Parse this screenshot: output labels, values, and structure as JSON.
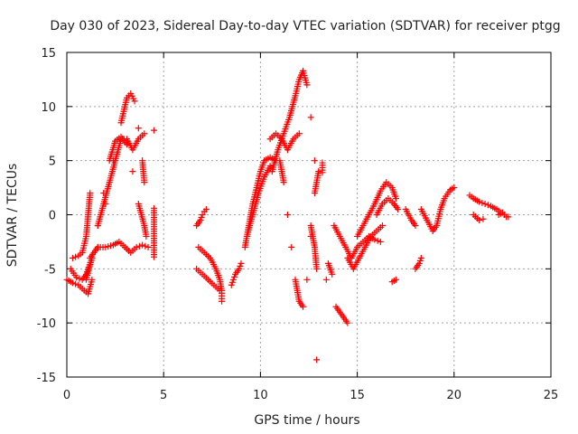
{
  "chart_data": {
    "type": "scatter",
    "title": "Day 030 of 2023, Sidereal Day-to-day VTEC variation (SDTVAR) for receiver ptgg",
    "xlabel": "GPS time / hours",
    "ylabel": "SDTVAR / TECUs",
    "xlim": [
      0,
      25
    ],
    "ylim": [
      -15,
      15
    ],
    "xticks": [
      0,
      5,
      10,
      15,
      20,
      25
    ],
    "yticks": [
      -15,
      -10,
      -5,
      0,
      5,
      10,
      15
    ],
    "grid": true,
    "marker": "+",
    "color": "#ff0000",
    "series": [
      {
        "name": "seg1",
        "points": [
          [
            0,
            -6
          ],
          [
            0.3,
            -6.3
          ],
          [
            0.6,
            -6.5
          ],
          [
            0.9,
            -7
          ],
          [
            1.1,
            -7.3
          ],
          [
            1.3,
            -6
          ],
          [
            1.6,
            -3
          ],
          [
            2.0,
            1
          ],
          [
            2.4,
            5
          ],
          [
            2.8,
            8.5
          ],
          [
            3.1,
            10.8
          ],
          [
            3.3,
            11.2
          ],
          [
            3.5,
            10.5
          ],
          [
            3.7,
            8
          ],
          [
            3.9,
            5
          ],
          [
            4.0,
            3
          ]
        ]
      },
      {
        "name": "seg2",
        "points": [
          [
            0.2,
            -5
          ],
          [
            0.5,
            -5.8
          ],
          [
            0.8,
            -6
          ],
          [
            1.0,
            -5.5
          ],
          [
            1.3,
            -4
          ],
          [
            1.6,
            -1
          ],
          [
            1.9,
            2
          ],
          [
            2.2,
            5
          ],
          [
            2.5,
            6.8
          ],
          [
            2.8,
            7.2
          ],
          [
            3.1,
            6.5
          ],
          [
            3.4,
            4
          ],
          [
            3.7,
            1
          ],
          [
            4.0,
            -1
          ],
          [
            4.1,
            -2
          ]
        ]
      },
      {
        "name": "seg3",
        "points": [
          [
            0.3,
            -4
          ],
          [
            0.6,
            -3.8
          ],
          [
            0.8,
            -3.5
          ],
          [
            1.0,
            -2
          ],
          [
            1.1,
            0
          ],
          [
            1.2,
            2
          ]
        ]
      },
      {
        "name": "seg4",
        "points": [
          [
            1.2,
            -4
          ],
          [
            1.6,
            -3
          ],
          [
            2.0,
            -3
          ],
          [
            2.4,
            -2.8
          ],
          [
            2.7,
            -2.5
          ],
          [
            3.0,
            -3
          ],
          [
            3.3,
            -3.5
          ],
          [
            3.6,
            -3
          ],
          [
            3.9,
            -2.8
          ],
          [
            4.2,
            -3
          ]
        ]
      },
      {
        "name": "seg5",
        "points": [
          [
            1.0,
            -6
          ],
          [
            1.3,
            -4
          ],
          [
            1.6,
            -1
          ],
          [
            1.9,
            1
          ],
          [
            2.2,
            3
          ],
          [
            2.5,
            5
          ],
          [
            2.8,
            7
          ],
          [
            3.1,
            7
          ],
          [
            3.4,
            6
          ],
          [
            3.7,
            7
          ],
          [
            4.0,
            7.5
          ]
        ]
      },
      {
        "name": "seg6",
        "points": [
          [
            4.5,
            7.8
          ],
          [
            4.5,
            0.6
          ],
          [
            4.5,
            -1.1
          ],
          [
            4.5,
            -2.4
          ],
          [
            4.5,
            -3.9
          ]
        ]
      },
      {
        "name": "seg7",
        "points": [
          [
            6.7,
            -1
          ],
          [
            6.9,
            -0.5
          ],
          [
            7.0,
            0
          ],
          [
            7.1,
            0.3
          ],
          [
            7.2,
            0.5
          ]
        ]
      },
      {
        "name": "seg8",
        "points": [
          [
            6.8,
            -3
          ],
          [
            7.1,
            -3.5
          ],
          [
            7.4,
            -4
          ],
          [
            7.7,
            -5
          ],
          [
            7.9,
            -6
          ],
          [
            8.0,
            -7
          ],
          [
            8.0,
            -8
          ]
        ]
      },
      {
        "name": "seg9",
        "points": [
          [
            6.7,
            -5
          ],
          [
            7.0,
            -5.5
          ],
          [
            7.3,
            -6
          ],
          [
            7.6,
            -6.5
          ],
          [
            7.9,
            -7
          ]
        ]
      },
      {
        "name": "seg10",
        "points": [
          [
            8.5,
            -6.5
          ],
          [
            8.6,
            -6
          ],
          [
            8.7,
            -5.5
          ],
          [
            8.9,
            -5
          ],
          [
            9.0,
            -4.5
          ]
        ]
      },
      {
        "name": "seg11",
        "points": [
          [
            9.2,
            -3
          ],
          [
            9.4,
            -1
          ],
          [
            9.6,
            1
          ],
          [
            9.8,
            2.5
          ],
          [
            10.0,
            4
          ],
          [
            10.2,
            5
          ],
          [
            10.5,
            5.3
          ],
          [
            10.8,
            5
          ]
        ]
      },
      {
        "name": "seg12",
        "points": [
          [
            9.3,
            -2
          ],
          [
            9.6,
            0
          ],
          [
            9.9,
            2
          ],
          [
            10.2,
            3.5
          ],
          [
            10.5,
            4.5
          ]
        ]
      },
      {
        "name": "seg13",
        "points": [
          [
            10.6,
            4
          ],
          [
            10.9,
            6
          ],
          [
            11.2,
            7.5
          ],
          [
            11.5,
            9
          ],
          [
            11.8,
            11
          ],
          [
            12.0,
            12.5
          ],
          [
            12.2,
            13.3
          ],
          [
            12.4,
            12
          ],
          [
            12.6,
            9
          ],
          [
            12.8,
            5
          ]
        ]
      },
      {
        "name": "seg14",
        "points": [
          [
            10.5,
            7
          ],
          [
            10.8,
            7.5
          ],
          [
            11.1,
            7
          ],
          [
            11.4,
            6
          ],
          [
            11.7,
            7
          ],
          [
            12.0,
            7.5
          ]
        ]
      },
      {
        "name": "seg15",
        "points": [
          [
            11.0,
            5
          ],
          [
            11.2,
            3
          ],
          [
            11.4,
            0
          ],
          [
            11.6,
            -3
          ],
          [
            11.8,
            -6
          ],
          [
            12.0,
            -8
          ],
          [
            12.2,
            -8.5
          ],
          [
            12.4,
            -6
          ],
          [
            12.6,
            -2
          ],
          [
            12.8,
            2
          ],
          [
            13.0,
            4
          ]
        ]
      },
      {
        "name": "seg16",
        "points": [
          [
            12.6,
            -1
          ],
          [
            12.8,
            -3
          ],
          [
            12.9,
            -5
          ]
        ]
      },
      {
        "name": "seg17",
        "points": [
          [
            12.9,
            -13.4
          ],
          [
            13.2,
            4.8
          ],
          [
            13.2,
            3.9
          ],
          [
            13.4,
            -6
          ]
        ]
      },
      {
        "name": "seg18",
        "points": [
          [
            13.5,
            -4.5
          ],
          [
            13.7,
            -5.5
          ],
          [
            13.9,
            -8.5
          ],
          [
            14.1,
            -9
          ],
          [
            14.3,
            -9.5
          ],
          [
            14.5,
            -10
          ]
        ]
      },
      {
        "name": "seg19",
        "points": [
          [
            13.8,
            -1
          ],
          [
            14.1,
            -2
          ],
          [
            14.4,
            -3
          ],
          [
            14.7,
            -4
          ],
          [
            15.0,
            -3
          ],
          [
            15.3,
            -2.5
          ],
          [
            15.6,
            -2
          ],
          [
            15.9,
            -2.3
          ],
          [
            16.2,
            -2.5
          ]
        ]
      },
      {
        "name": "seg20",
        "points": [
          [
            14.5,
            -4
          ],
          [
            14.8,
            -5
          ],
          [
            15.1,
            -4
          ],
          [
            15.4,
            -3
          ],
          [
            15.7,
            -2
          ],
          [
            16.0,
            -1.5
          ],
          [
            16.3,
            -1
          ]
        ]
      },
      {
        "name": "seg21",
        "points": [
          [
            15.0,
            -2
          ],
          [
            15.3,
            -1
          ],
          [
            15.6,
            0
          ],
          [
            15.9,
            1
          ],
          [
            16.2,
            2.2
          ],
          [
            16.5,
            3
          ],
          [
            16.8,
            2.5
          ],
          [
            17.0,
            1.5
          ]
        ]
      },
      {
        "name": "seg22",
        "points": [
          [
            16.0,
            0
          ],
          [
            16.3,
            1
          ],
          [
            16.6,
            1.5
          ],
          [
            16.9,
            1
          ],
          [
            17.1,
            0.5
          ]
        ]
      },
      {
        "name": "seg23",
        "points": [
          [
            17.0,
            -6
          ],
          [
            16.8,
            -6.2
          ]
        ]
      },
      {
        "name": "seg24",
        "points": [
          [
            17.5,
            0.5
          ],
          [
            17.8,
            -0.5
          ],
          [
            18.0,
            -1
          ]
        ]
      },
      {
        "name": "seg25",
        "points": [
          [
            18.0,
            -5
          ],
          [
            18.2,
            -4.5
          ],
          [
            18.3,
            -4
          ]
        ]
      },
      {
        "name": "seg26",
        "points": [
          [
            18.3,
            0.5
          ],
          [
            18.6,
            -0.5
          ],
          [
            18.9,
            -1.5
          ],
          [
            19.1,
            -1
          ],
          [
            19.3,
            0.5
          ],
          [
            19.5,
            1.5
          ],
          [
            19.8,
            2.3
          ],
          [
            20.0,
            2.5
          ]
        ]
      },
      {
        "name": "seg27",
        "points": [
          [
            20.8,
            1.8
          ],
          [
            21.0,
            1.5
          ],
          [
            21.3,
            1.2
          ],
          [
            21.6,
            1.0
          ],
          [
            21.9,
            0.8
          ],
          [
            22.2,
            0.5
          ],
          [
            22.4,
            0.2
          ]
        ]
      },
      {
        "name": "seg28",
        "points": [
          [
            21.0,
            0
          ],
          [
            21.3,
            -0.5
          ],
          [
            21.5,
            -0.4
          ]
        ]
      },
      {
        "name": "seg29",
        "points": [
          [
            22.3,
            0
          ],
          [
            22.5,
            0.2
          ],
          [
            22.7,
            -0.2
          ],
          [
            22.8,
            -0.2
          ]
        ]
      }
    ]
  }
}
